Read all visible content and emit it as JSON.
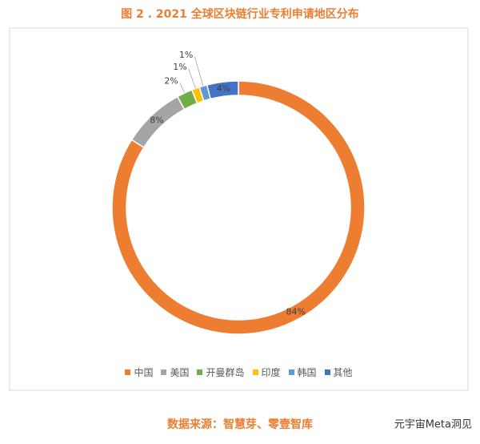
{
  "chart_data": {
    "type": "donut",
    "title": "图 2 .  2021 全球区块链行业专利申请地区分布",
    "categories": [
      "中国",
      "美国",
      "开曼群岛",
      "印度",
      "韩国",
      "其他"
    ],
    "values": [
      84,
      8,
      2,
      1,
      1,
      4
    ],
    "value_labels": [
      "84%",
      "8%",
      "2%",
      "1%",
      "1%",
      "4%"
    ],
    "colors": [
      "#ed7d31",
      "#a5a5a5",
      "#70ad47",
      "#ffc000",
      "#5b9bd5",
      "#4472c4"
    ],
    "legend": "bottom"
  },
  "source": "数据来源：智慧芽、零壹智库",
  "watermark": "元宇宙Meta洞见"
}
